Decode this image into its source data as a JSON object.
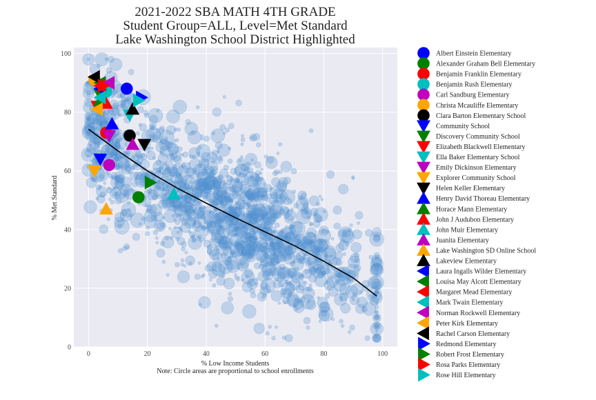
{
  "chart_data": {
    "type": "scatter",
    "title_lines": [
      "2021-2022 SBA MATH 4TH GRADE",
      "Student Group=ALL, Level=Met Standard",
      "Lake Washington School District Highlighted"
    ],
    "xlabel": "% Low Income Students",
    "note": "Note: Circle areas are proportional to school enrollments",
    "ylabel": "% Met Standard",
    "xlim": [
      -5,
      105
    ],
    "ylim": [
      0,
      102
    ],
    "xticks": [
      0,
      20,
      40,
      60,
      80,
      100
    ],
    "yticks": [
      0,
      20,
      40,
      60,
      80,
      100
    ],
    "grid": true,
    "legend_placement": "right, outside plot",
    "background_color": "#eaeaf2",
    "background_series": {
      "color": "#4f8fd0",
      "count": 1600,
      "description_of_cloud": "statewide schools, semi-transparent circles"
    },
    "trend_line": {
      "color": "#000000",
      "x": [
        0,
        10,
        20,
        30,
        40,
        50,
        60,
        70,
        80,
        90,
        98
      ],
      "y": [
        74.2,
        66.8,
        60.0,
        54.2,
        49.0,
        44.0,
        39.2,
        34.5,
        29.2,
        23.5,
        17.3
      ]
    },
    "highlighted": [
      {
        "name": "Albert Einstein Elementary",
        "marker": "circle",
        "color": "#0000ff",
        "x": 13,
        "y": 88
      },
      {
        "name": "Alexander Graham Bell Elementary",
        "marker": "circle",
        "color": "#008000",
        "x": 17,
        "y": 51
      },
      {
        "name": "Benjamin Franklin Elementary",
        "marker": "circle",
        "color": "#ff0000",
        "x": 6,
        "y": 73
      },
      {
        "name": "Benjamin Rush Elementary",
        "marker": "circle",
        "color": "#00bfbf",
        "x": 6,
        "y": 87
      },
      {
        "name": "Carl Sandburg Elementary",
        "marker": "circle",
        "color": "#bf00bf",
        "x": 7,
        "y": 62
      },
      {
        "name": "Christa Mcauliffe Elementary",
        "marker": "circle",
        "color": "#ffa500",
        "x": 2,
        "y": 91
      },
      {
        "name": "Clara Barton Elementary School",
        "marker": "circle",
        "color": "#000000",
        "x": 14,
        "y": 72
      },
      {
        "name": "Community School",
        "marker": "triangle-down",
        "color": "#0000ff",
        "x": 4,
        "y": 64
      },
      {
        "name": "Discovery Community  School",
        "marker": "triangle-down",
        "color": "#008000",
        "x": 4,
        "y": 86
      },
      {
        "name": "Elizabeth Blackwell Elementary",
        "marker": "triangle-down",
        "color": "#ff0000",
        "x": 3,
        "y": 82
      },
      {
        "name": "Ella Baker Elementary School",
        "marker": "triangle-down",
        "color": "#00bfbf",
        "x": 14,
        "y": 79
      },
      {
        "name": "Emily Dickinson Elementary",
        "marker": "triangle-down",
        "color": "#bf00bf",
        "x": 7,
        "y": 72
      },
      {
        "name": "Explorer Community School",
        "marker": "triangle-down",
        "color": "#ffa500",
        "x": 2,
        "y": 60
      },
      {
        "name": "Helen Keller Elementary",
        "marker": "triangle-down",
        "color": "#000000",
        "x": 19,
        "y": 69
      },
      {
        "name": "Henry David Thoreau Elementary",
        "marker": "triangle-up",
        "color": "#0000ff",
        "x": 8,
        "y": 76
      },
      {
        "name": "Horace Mann Elementary",
        "marker": "triangle-up",
        "color": "#008000",
        "x": 4,
        "y": 84
      },
      {
        "name": "John J Audubon Elementary",
        "marker": "triangle-up",
        "color": "#ff0000",
        "x": 6,
        "y": 83
      },
      {
        "name": "John Muir Elementary",
        "marker": "triangle-up",
        "color": "#00bfbf",
        "x": 29,
        "y": 52
      },
      {
        "name": "Juanita Elementary",
        "marker": "triangle-up",
        "color": "#bf00bf",
        "x": 15,
        "y": 69
      },
      {
        "name": "Lake Washington SD Online School",
        "marker": "triangle-up",
        "color": "#ffa500",
        "x": 6,
        "y": 47
      },
      {
        "name": "Lakeview Elementary",
        "marker": "triangle-up",
        "color": "#000000",
        "x": 15,
        "y": 81
      },
      {
        "name": "Laura Ingalls Wilder Elementary",
        "marker": "triangle-left",
        "color": "#0000ff",
        "x": 4,
        "y": 88
      },
      {
        "name": "Louisa May Alcott Elementary",
        "marker": "triangle-left",
        "color": "#008000",
        "x": 4,
        "y": 90
      },
      {
        "name": "Margaret Mead Elementary",
        "marker": "triangle-left",
        "color": "#ff0000",
        "x": 4,
        "y": 89
      },
      {
        "name": "Mark Twain Elementary",
        "marker": "triangle-left",
        "color": "#00bfbf",
        "x": 4,
        "y": 85
      },
      {
        "name": "Norman Rockwell Elementary",
        "marker": "triangle-left",
        "color": "#bf00bf",
        "x": 7,
        "y": 90
      },
      {
        "name": "Peter Kirk Elementary",
        "marker": "triangle-left",
        "color": "#ffa500",
        "x": 3,
        "y": 81
      },
      {
        "name": "Rachel Carson Elementary",
        "marker": "triangle-left",
        "color": "#000000",
        "x": 2,
        "y": 92
      },
      {
        "name": "Redmond Elementary",
        "marker": "triangle-right",
        "color": "#0000ff",
        "x": 18,
        "y": 85
      },
      {
        "name": "Robert Frost Elementary",
        "marker": "triangle-right",
        "color": "#008000",
        "x": 21,
        "y": 56
      },
      {
        "name": "Rosa Parks Elementary",
        "marker": "triangle-right",
        "color": "#ff0000",
        "x": 5,
        "y": 89
      },
      {
        "name": "Rose Hill Elementary",
        "marker": "triangle-right",
        "color": "#00bfbf",
        "x": 17,
        "y": 84
      }
    ]
  }
}
